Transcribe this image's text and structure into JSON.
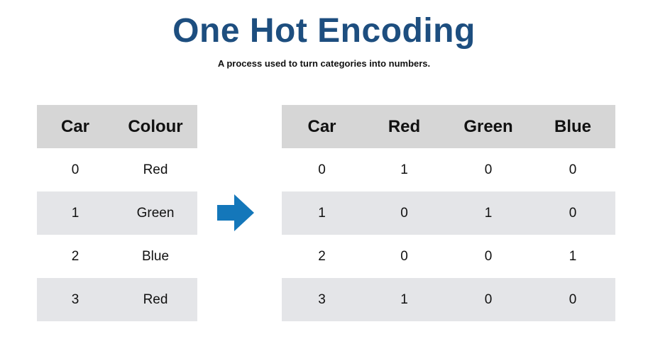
{
  "title": "One Hot Encoding",
  "subtitle": "A process used to turn categories into numbers.",
  "colors": {
    "title": "#1d4e7f",
    "header_bg": "#d6d6d6",
    "band_bg": "#e4e5e8",
    "arrow": "#1477ba"
  },
  "arrow_icon": "arrow-right-icon",
  "left_table": {
    "headers": [
      "Car",
      "Colour"
    ],
    "rows": [
      [
        "0",
        "Red"
      ],
      [
        "1",
        "Green"
      ],
      [
        "2",
        "Blue"
      ],
      [
        "3",
        "Red"
      ]
    ]
  },
  "right_table": {
    "headers": [
      "Car",
      "Red",
      "Green",
      "Blue"
    ],
    "rows": [
      [
        "0",
        "1",
        "0",
        "0"
      ],
      [
        "1",
        "0",
        "1",
        "0"
      ],
      [
        "2",
        "0",
        "0",
        "1"
      ],
      [
        "3",
        "1",
        "0",
        "0"
      ]
    ]
  }
}
